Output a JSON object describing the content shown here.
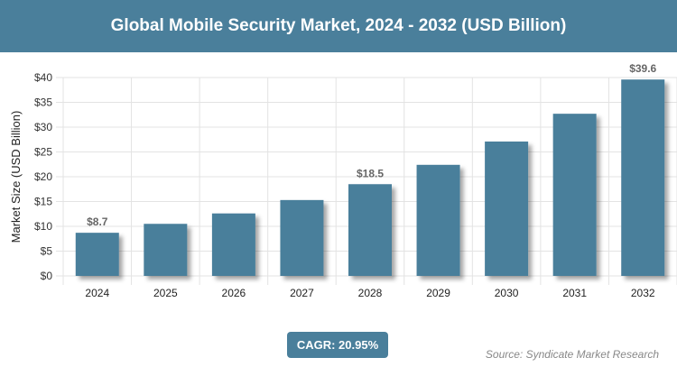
{
  "title": "Global Mobile Security Market, 2024 - 2032 (USD Billion)",
  "cagr": "CAGR: 20.95%",
  "source": "Source: Syndicate Market Research",
  "colors": {
    "bar": "#4a7f9b",
    "header": "#4a7f9b"
  },
  "chart_data": {
    "type": "bar",
    "title": "Global Mobile Security Market, 2024 - 2032 (USD Billion)",
    "xlabel": "",
    "ylabel": "Market Size (USD Billion)",
    "ylim": [
      0,
      40
    ],
    "yticks": [
      "$0",
      "$5",
      "$10",
      "$15",
      "$20",
      "$25",
      "$30",
      "$35",
      "$40"
    ],
    "grid": true,
    "categories": [
      "2024",
      "2025",
      "2026",
      "2027",
      "2028",
      "2029",
      "2030",
      "2031",
      "2032"
    ],
    "values": [
      8.7,
      10.5,
      12.6,
      15.3,
      18.5,
      22.4,
      27.1,
      32.7,
      39.6
    ],
    "data_labels": {
      "0": "$8.7",
      "4": "$18.5",
      "8": "$39.6"
    }
  }
}
